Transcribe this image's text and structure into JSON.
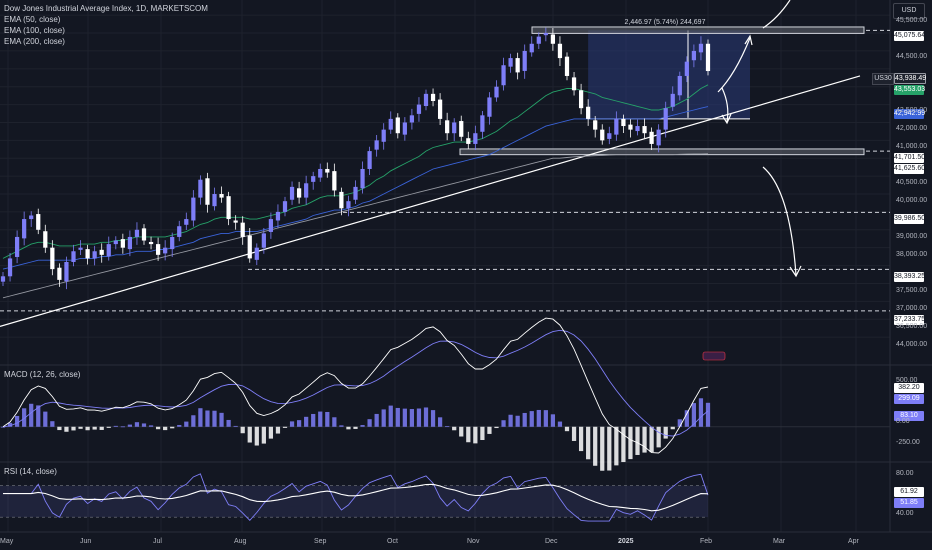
{
  "chart_title": "Dow Jones Industrial Average Index, 1D, MARKETSCOM",
  "indicators_main": [
    "EMA (50, close)",
    "EMA (100, close)",
    "EMA (200, close)"
  ],
  "currency": "USD",
  "symbol_label": "US30",
  "measure_label": "2,446.97 (5.74%) 244,697",
  "price_axis": [
    "45,500.00",
    "44,500.00",
    "44,000.00",
    "43,500.00",
    "42,500.00",
    "42,000.00",
    "41,000.00",
    "40,500.00",
    "40,000.00",
    "39,500.00",
    "39,000.00",
    "38,000.00",
    "37,500.00",
    "37,000.00",
    "36,500.00"
  ],
  "price_tags": {
    "resistance": "45,075.64",
    "last": "43,938.49",
    "ema50": "43,553.03",
    "ema100": "42,942.99",
    "support_top": "41,701.50",
    "ema200": "41,625.60",
    "level_3": "39,986.50",
    "level_4": "38,393.25",
    "level_5": "37,233.75"
  },
  "macd": {
    "title": "MACD (12, 26, close)",
    "axis": [
      "500.00",
      "0.00",
      "-250.00"
    ],
    "tags": {
      "macd": "382.20",
      "signal": "299.09",
      "hist": "83.10"
    }
  },
  "rsi": {
    "title": "RSI (14, close)",
    "axis": [
      "80.00",
      "40.00"
    ],
    "tags": {
      "rsi": "61.92",
      "ma": "51.85"
    }
  },
  "time_axis": [
    "May",
    "Jun",
    "Jul",
    "Aug",
    "Sep",
    "Oct",
    "Nov",
    "Dec",
    "2025",
    "Feb",
    "Mar",
    "Apr"
  ],
  "colors": {
    "background": "#131722",
    "up": "#7e7ef7",
    "down": "#ffffff",
    "ema50": "#26a269",
    "ema100": "#3a63d9",
    "ema200": "#9598a1",
    "macd_line": "#ffffff",
    "signal_line": "#7e7ef7"
  },
  "chart_data": {
    "type": "candlestick",
    "title": "Dow Jones Industrial Average Index, 1D, MARKETSCOM",
    "ylim": [
      36000,
      45700
    ],
    "closes": [
      38200,
      38700,
      39300,
      39800,
      39900,
      39500,
      39000,
      38400,
      38100,
      38600,
      38900,
      39000,
      38700,
      38900,
      38800,
      39100,
      39200,
      39000,
      39300,
      39500,
      39200,
      39100,
      38800,
      39000,
      39300,
      39600,
      39800,
      40400,
      40900,
      40200,
      40500,
      40400,
      39800,
      39700,
      39300,
      38700,
      39000,
      39400,
      39800,
      40000,
      40300,
      40700,
      40400,
      40800,
      41000,
      41200,
      41100,
      40600,
      40100,
      40300,
      40700,
      41200,
      41700,
      42000,
      42300,
      42600,
      42200,
      42500,
      42700,
      43000,
      43300,
      43100,
      42600,
      42200,
      42500,
      42100,
      41900,
      42200,
      42700,
      43200,
      43500,
      44100,
      44300,
      43900,
      44500,
      44700,
      44900,
      45000,
      44700,
      44300,
      43800,
      43400,
      42900,
      42600,
      42300,
      42000,
      42200,
      42600,
      42400,
      42300,
      42400,
      42200,
      41900,
      42300,
      42900,
      43300,
      43800,
      44200,
      44500,
      44700,
      43938
    ]
  },
  "indicator_series": {
    "ema50": [
      38700,
      38800,
      38900,
      39000,
      39100,
      39150,
      39150,
      39100,
      39050,
      39050,
      39050,
      39100,
      39100,
      39100,
      39150,
      39150,
      39200,
      39200,
      39250,
      39300,
      39300,
      39300,
      39300,
      39300,
      39350,
      39400,
      39450,
      39550,
      39650,
      39700,
      39800,
      39850,
      39850,
      39850,
      39850,
      39800,
      39800,
      39850,
      39900,
      39950,
      40000,
      40100,
      40150,
      40200,
      40300,
      40400,
      40450,
      40450,
      40450,
      40500,
      40550,
      40650,
      40750,
      40900,
      41000,
      41150,
      41250,
      41350,
      41450,
      41550,
      41700,
      41800,
      41850,
      41900,
      41950,
      41950,
      41950,
      42000,
      42050,
      42150,
      42250,
      42400,
      42550,
      42650,
      42800,
      42950,
      43100,
      43250,
      43350,
      43400,
      43450,
      43450,
      43400,
      43350,
      43300,
      43200,
      43150,
      43100,
      43050,
      43000,
      42950,
      42900,
      42850,
      42850,
      42900,
      42950,
      43050,
      43150,
      43300,
      43450,
      43553
    ],
    "ema100": [
      38400,
      38450,
      38500,
      38550,
      38600,
      38650,
      38650,
      38650,
      38650,
      38650,
      38650,
      38700,
      38700,
      38700,
      38750,
      38750,
      38800,
      38800,
      38850,
      38900,
      38900,
      38900,
      38950,
      38950,
      39000,
      39050,
      39100,
      39150,
      39250,
      39300,
      39350,
      39400,
      39400,
      39450,
      39450,
      39450,
      39450,
      39500,
      39550,
      39600,
      39650,
      39700,
      39750,
      39800,
      39900,
      39950,
      40000,
      40050,
      40050,
      40100,
      40150,
      40250,
      40300,
      40400,
      40500,
      40600,
      40700,
      40800,
      40900,
      41000,
      41100,
      41200,
      41250,
      41300,
      41350,
      41400,
      41450,
      41500,
      41550,
      41600,
      41700,
      41800,
      41900,
      42000,
      42100,
      42200,
      42300,
      42400,
      42450,
      42500,
      42550,
      42600,
      42600,
      42600,
      42600,
      42600,
      42600,
      42600,
      42600,
      42600,
      42600,
      42600,
      42600,
      42600,
      42650,
      42700,
      42750,
      42800,
      42850,
      42900,
      42943
    ],
    "ema200": [
      37600,
      37650,
      37700,
      37750,
      37800,
      37850,
      37900,
      37950,
      38000,
      38050,
      38100,
      38150,
      38200,
      38250,
      38300,
      38350,
      38400,
      38450,
      38500,
      38550,
      38600,
      38650,
      38700,
      38750,
      38800,
      38850,
      38900,
      38950,
      39000,
      39050,
      39100,
      39150,
      39200,
      39250,
      39300,
      39350,
      39400,
      39450,
      39500,
      39550,
      39600,
      39650,
      39700,
      39750,
      39800,
      39850,
      39900,
      39950,
      40000,
      40050,
      40100,
      40150,
      40200,
      40250,
      40300,
      40350,
      40400,
      40450,
      40500,
      40550,
      40600,
      40650,
      40700,
      40750,
      40800,
      40850,
      40900,
      40950,
      41000,
      41050,
      41100,
      41150,
      41200,
      41250,
      41300,
      41350,
      41400,
      41450,
      41500,
      41500,
      41520,
      41540,
      41550,
      41560,
      41570,
      41580,
      41590,
      41600,
      41600,
      41600,
      41600,
      41600,
      41600,
      41600,
      41600,
      41600,
      41610,
      41615,
      41620,
      41622,
      41626
    ]
  }
}
